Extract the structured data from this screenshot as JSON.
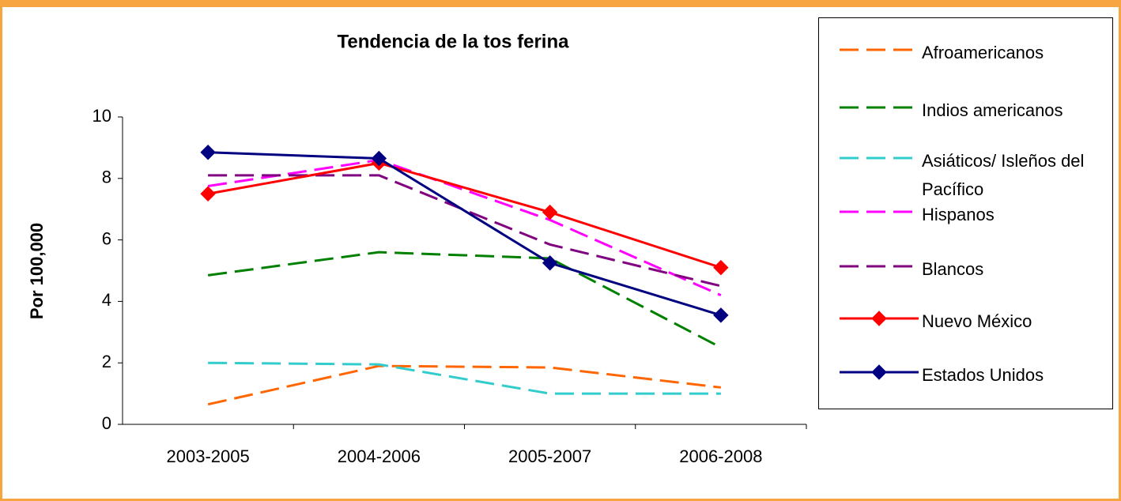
{
  "chart_data": {
    "type": "line",
    "title": "Tendencia de la tos ferina",
    "y_label": "Por 100,000",
    "categories": [
      "2003-2005",
      "2004-2006",
      "2005-2007",
      "2006-2008"
    ],
    "ylim": [
      0,
      10
    ],
    "yticks": [
      0,
      2,
      4,
      6,
      8,
      10
    ],
    "grid": false,
    "legend": "right",
    "series": [
      {
        "name": "Afroamericanos",
        "color": "#ff6600",
        "dashed": true,
        "values": [
          0.65,
          1.9,
          1.85,
          1.2
        ]
      },
      {
        "name": "Indios americanos",
        "color": "#008000",
        "dashed": true,
        "values": [
          4.85,
          5.6,
          5.4,
          2.5
        ]
      },
      {
        "name": "Asiáticos/ Isleños del Pacífico",
        "color": "#33cccc",
        "dashed": true,
        "values": [
          2.0,
          1.95,
          1.0,
          1.0
        ]
      },
      {
        "name": "Hispanos",
        "color": "#ff00ff",
        "dashed": true,
        "values": [
          7.75,
          8.6,
          6.65,
          4.2
        ]
      },
      {
        "name": "Blancos",
        "color": "#800080",
        "dashed": true,
        "values": [
          8.1,
          8.1,
          5.85,
          4.5
        ]
      },
      {
        "name": "Nuevo México",
        "color": "#ff0000",
        "dashed": false,
        "marker": "diamond",
        "values": [
          7.5,
          8.5,
          6.9,
          5.1
        ]
      },
      {
        "name": "Estados Unidos",
        "color": "#000080",
        "dashed": false,
        "marker": "diamond",
        "values": [
          8.85,
          8.65,
          5.25,
          3.55
        ]
      }
    ]
  }
}
